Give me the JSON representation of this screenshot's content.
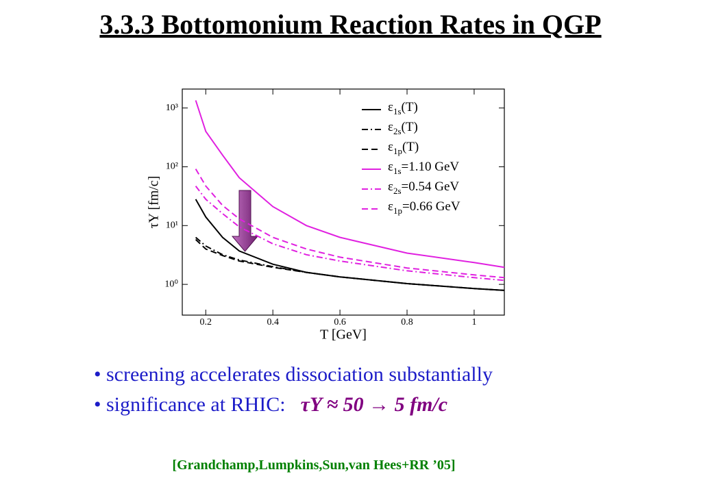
{
  "slide": {
    "title": "3.3.3 Bottomonium Reaction Rates in QGP",
    "bullets": [
      "• screening accelerates dissociation substantially",
      "• significance at RHIC:"
    ],
    "highlight": "τY ≈ 50 → 5 fm/c",
    "citation": "[Grandchamp,Lumpkins,Sun,van Hees+RR ’05]"
  },
  "chart_data": {
    "type": "line",
    "xlabel": "T [GeV]",
    "ylabel": "τY [fm/c]",
    "x": [
      0.17,
      0.2,
      0.25,
      0.3,
      0.4,
      0.5,
      0.6,
      0.8,
      1.0,
      1.09
    ],
    "series": [
      {
        "name": "ε1s(T)",
        "color": "#000000",
        "style": "solid",
        "values": [
          28,
          14,
          6.3,
          3.7,
          2.2,
          1.6,
          1.34,
          1.03,
          0.85,
          0.79
        ]
      },
      {
        "name": "ε2s(T)",
        "color": "#000000",
        "style": "dashdot",
        "values": [
          6.3,
          4.5,
          3.2,
          2.6,
          2.0,
          1.6,
          1.34,
          1.03,
          0.85,
          0.79
        ]
      },
      {
        "name": "ε1p(T)",
        "color": "#000000",
        "style": "dashed",
        "values": [
          5.8,
          4.0,
          3.1,
          2.5,
          1.95,
          1.6,
          1.34,
          1.03,
          0.85,
          0.79
        ]
      },
      {
        "name": "ε1s=1.10 GeV",
        "color": "#e020e0",
        "style": "solid",
        "values": [
          1350,
          400,
          158,
          65,
          21,
          10,
          6.3,
          3.4,
          2.35,
          1.95
        ]
      },
      {
        "name": "ε2s=0.54 GeV",
        "color": "#e020e0",
        "style": "dashdot",
        "values": [
          47,
          28,
          16,
          9.5,
          4.9,
          3.2,
          2.5,
          1.7,
          1.3,
          1.17
        ]
      },
      {
        "name": "ε1p=0.66 GeV",
        "color": "#e020e0",
        "style": "dashed",
        "values": [
          92,
          47,
          22,
          13,
          6.3,
          4.0,
          2.9,
          1.9,
          1.45,
          1.3
        ]
      }
    ],
    "xlim": [
      0.13,
      1.09
    ],
    "ylim": [
      0.3,
      2100
    ],
    "xticks": [
      0.2,
      0.4,
      0.6,
      0.8,
      1
    ],
    "yticks": [
      {
        "value": 1,
        "label": "10⁰"
      },
      {
        "value": 10,
        "label": "10¹"
      },
      {
        "value": 100,
        "label": "10²"
      },
      {
        "value": 1000,
        "label": "10³"
      }
    ],
    "log_y": true,
    "legend": "upper right"
  }
}
